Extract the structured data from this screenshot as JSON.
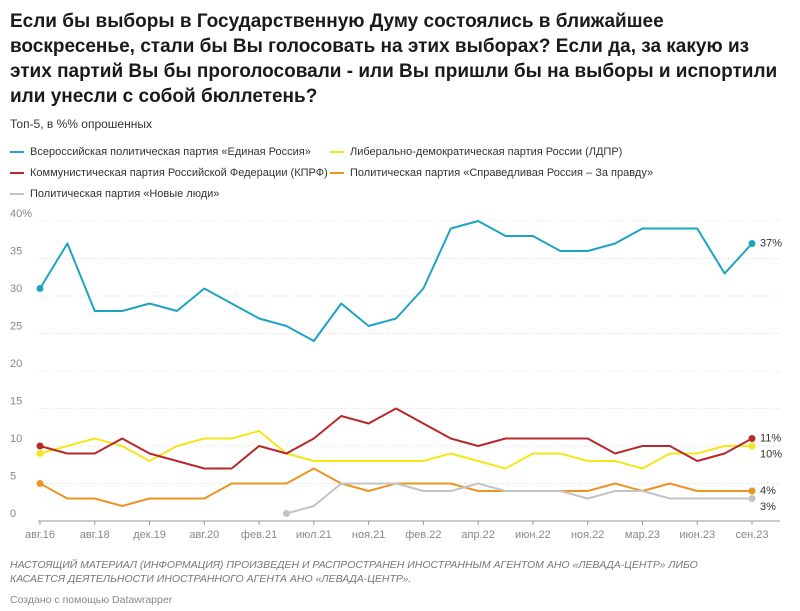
{
  "chart_data": {
    "type": "line",
    "title": [
      "Если бы выборы в Государственную Думу состоялись в ближайшее",
      "воскресенье, стали бы Вы голосовать на этих выборах? Если да, за какую из",
      "этих партий Вы бы проголосовали - или Вы пришли бы на выборы и испортили",
      "или унесли с собой бюллетень?"
    ],
    "subtitle": "Топ-5, в %% опрошенных",
    "notes": [
      "НАСТОЯЩИЙ МАТЕРИАЛ (ИНФОРМАЦИЯ) ПРОИЗВЕДЕН И РАСПРОСТРАНЕН ИНОСТРАННЫМ АГЕНТОМ АНО «ЛЕВАДА-ЦЕНТР» ЛИБО",
      "КАСАЕТСЯ ДЕЯТЕЛЬНОСТИ ИНОСТРАННОГО АГЕНТА АНО «ЛЕВАДА-ЦЕНТР»."
    ],
    "credit": "Создано с помощью Datawrapper",
    "categories": [
      "авг.16",
      null,
      "авг.18",
      null,
      "дек.19",
      null,
      "авг.20",
      null,
      "фев.21",
      null,
      "июл.21",
      null,
      "ноя.21",
      null,
      "фев.22",
      null,
      "апр.22",
      null,
      "июн.22",
      null,
      "ноя.22",
      null,
      "мар.23",
      null,
      "июн.23",
      null,
      "сен.23"
    ],
    "ylim": [
      0,
      40
    ],
    "yticks": [
      0,
      5,
      10,
      15,
      20,
      25,
      30,
      35,
      {
        "value": 40,
        "label": "40%"
      }
    ],
    "grid": true,
    "series": [
      {
        "name": "Всероссийская политическая партия «Единая Россия»",
        "color": "#1ea3c3",
        "values": [
          31,
          37,
          28,
          28,
          29,
          28,
          31,
          29,
          27,
          26,
          24,
          29,
          26,
          27,
          31,
          39,
          40,
          38,
          38,
          36,
          36,
          37,
          39,
          39,
          39,
          33,
          37
        ],
        "value_labels": [
          null,
          null,
          null,
          null,
          null,
          null,
          null,
          null,
          null,
          null,
          null,
          null,
          null,
          null,
          null,
          null,
          null,
          null,
          null,
          null,
          null,
          null,
          null,
          null,
          null,
          null,
          "37%"
        ]
      },
      {
        "name": "Либерально-демократическая партия России (ЛДПР)",
        "color": "#f5e61a",
        "values": [
          9,
          10,
          11,
          10,
          8,
          10,
          11,
          11,
          12,
          9,
          8,
          8,
          8,
          8,
          8,
          9,
          8,
          7,
          9,
          9,
          8,
          8,
          7,
          9,
          9,
          10,
          10
        ],
        "value_labels": [
          null,
          null,
          null,
          null,
          null,
          null,
          null,
          null,
          null,
          null,
          null,
          null,
          null,
          null,
          null,
          null,
          null,
          null,
          null,
          null,
          null,
          null,
          null,
          null,
          null,
          null,
          "10%"
        ]
      },
      {
        "name": "Коммунистическая партия Российской Федерации (КПРФ)",
        "color": "#b8282a",
        "values": [
          10,
          9,
          9,
          11,
          9,
          8,
          7,
          7,
          10,
          9,
          11,
          14,
          13,
          15,
          13,
          11,
          10,
          11,
          11,
          11,
          11,
          9,
          10,
          10,
          8,
          9,
          11
        ],
        "value_labels": [
          null,
          null,
          null,
          null,
          null,
          null,
          null,
          null,
          null,
          null,
          null,
          null,
          null,
          null,
          null,
          null,
          null,
          null,
          null,
          null,
          null,
          null,
          null,
          null,
          null,
          null,
          "11%"
        ]
      },
      {
        "name": "Политическая партия «Справедливая Россия – За правду»",
        "color": "#ec9421",
        "values": [
          5,
          3,
          3,
          2,
          3,
          3,
          3,
          5,
          5,
          5,
          7,
          5,
          4,
          5,
          5,
          5,
          4,
          4,
          4,
          4,
          4,
          5,
          4,
          5,
          4,
          4,
          4
        ],
        "value_labels": [
          null,
          null,
          null,
          null,
          null,
          null,
          null,
          null,
          null,
          null,
          null,
          null,
          null,
          null,
          null,
          null,
          null,
          null,
          null,
          null,
          null,
          null,
          null,
          null,
          null,
          null,
          "4%"
        ]
      },
      {
        "name": "Политическая партия «Новые люди»",
        "color": "#c4c4c4",
        "values": [
          null,
          null,
          null,
          null,
          null,
          null,
          null,
          null,
          null,
          1,
          2,
          5,
          5,
          5,
          4,
          4,
          5,
          4,
          4,
          4,
          3,
          4,
          4,
          3,
          3,
          3,
          3
        ],
        "value_labels": [
          null,
          null,
          null,
          null,
          null,
          null,
          null,
          null,
          null,
          null,
          null,
          null,
          null,
          null,
          null,
          null,
          null,
          null,
          null,
          null,
          null,
          null,
          null,
          null,
          null,
          null,
          "3%"
        ]
      }
    ]
  }
}
